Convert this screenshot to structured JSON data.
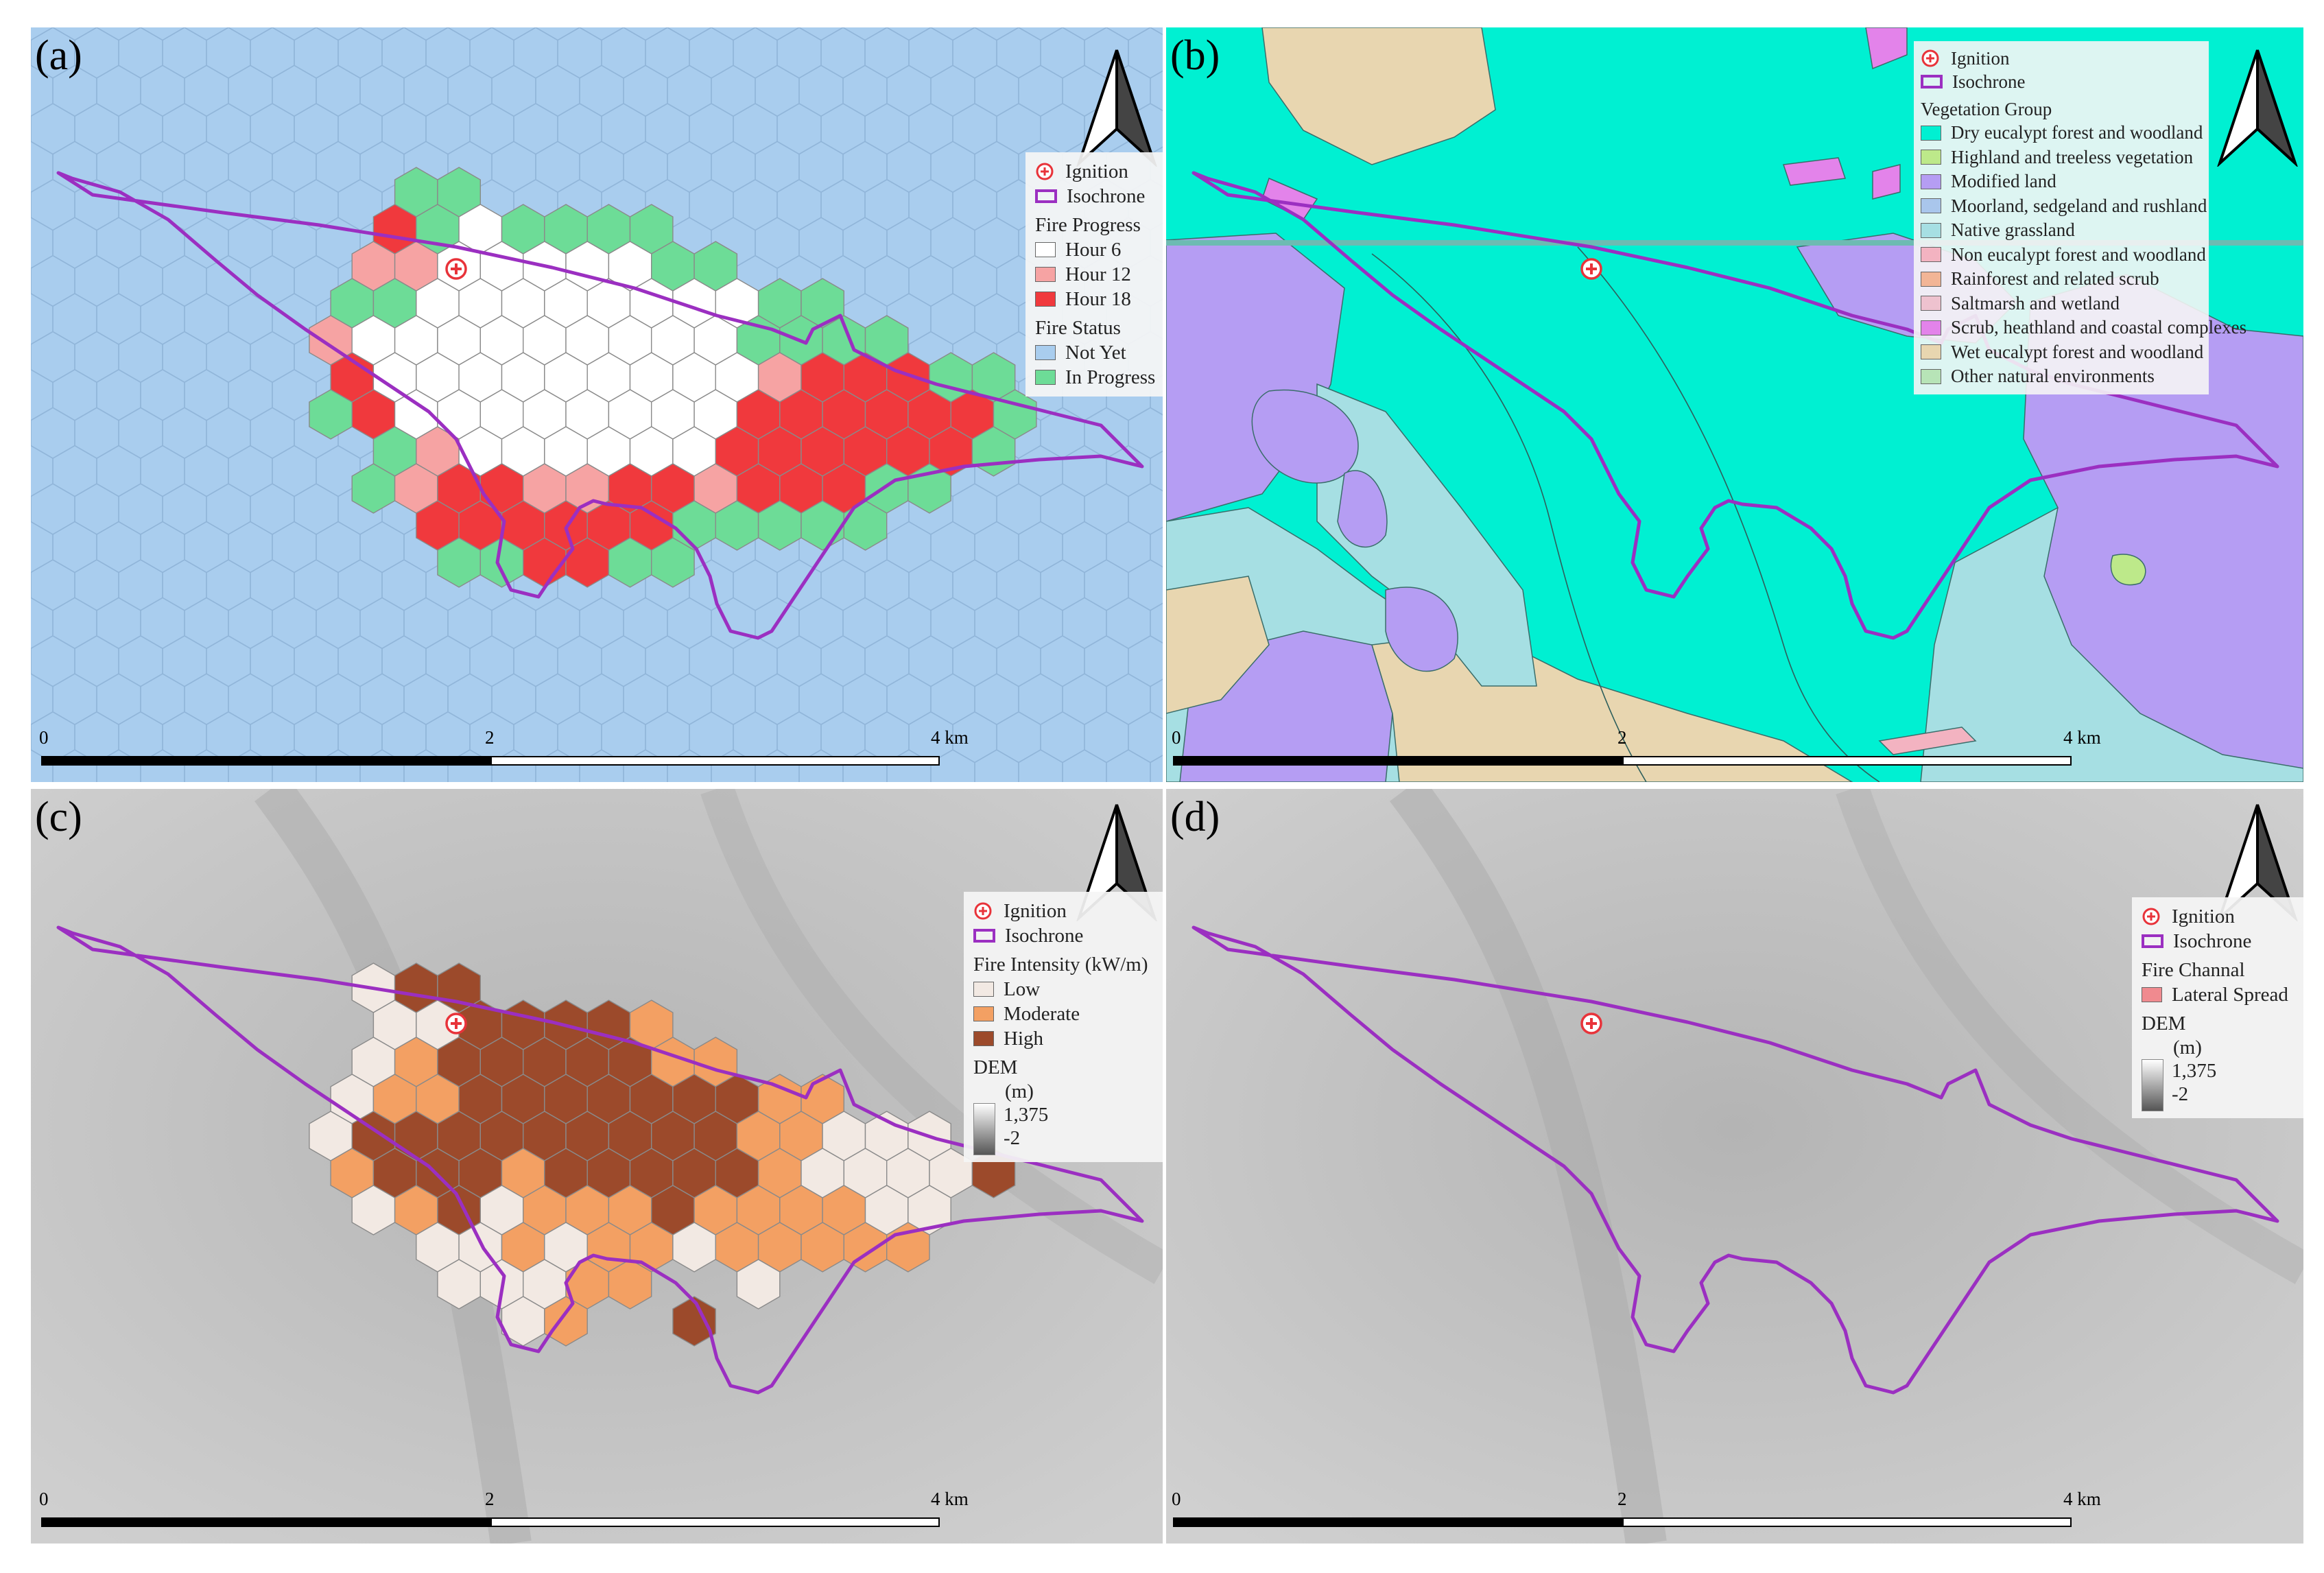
{
  "panels": {
    "a": {
      "label": "(a)",
      "legend": {
        "ignition": "Ignition",
        "isochrone": "Isochrone",
        "progress_title": "Fire Progress",
        "progress_items": [
          "Hour  6",
          "Hour 12",
          "Hour 18"
        ],
        "status_title": "Fire Status",
        "status_items": [
          "Not Yet",
          "In Progress"
        ]
      },
      "scale": {
        "t0": "0",
        "t1": "2",
        "t2": "4 km"
      }
    },
    "b": {
      "label": "(b)",
      "legend": {
        "ignition": "Ignition",
        "isochrone": "Isochrone",
        "veg_title": "Vegetation Group",
        "veg_items": [
          "Dry eucalypt forest and woodland",
          "Highland and treeless vegetation",
          "Modified land",
          "Moorland, sedgeland and rushland",
          "Native grassland",
          "Non eucalypt forest and woodland",
          "Rainforest and related scrub",
          "Saltmarsh and wetland",
          "Scrub, heathland and coastal complexes",
          "Wet eucalypt forest and woodland",
          "Other natural environments"
        ]
      },
      "scale": {
        "t0": "0",
        "t1": "2",
        "t2": "4 km"
      }
    },
    "c": {
      "label": "(c)",
      "legend": {
        "ignition": "Ignition",
        "isochrone": "Isochrone",
        "intensity_title": "Fire Intensity (kW/m)",
        "intensity_items": [
          "Low",
          "Moderate",
          "High"
        ],
        "dem_title": "DEM",
        "dem_unit": "(m)",
        "dem_max": "1,375",
        "dem_min": "-2"
      },
      "scale": {
        "t0": "0",
        "t1": "2",
        "t2": "4 km"
      }
    },
    "d": {
      "label": "(d)",
      "legend": {
        "ignition": "Ignition",
        "isochrone": "Isochrone",
        "channel_title": "Fire Channal",
        "channel_items": [
          "Lateral Spread"
        ],
        "dem_title": "DEM",
        "dem_unit": "(m)",
        "dem_max": "1,375",
        "dem_min": "-2"
      },
      "scale": {
        "t0": "0",
        "t1": "2",
        "t2": "4 km"
      }
    }
  },
  "colors": {
    "isochrone": "#9b2fc1",
    "ignition": "#e8333a",
    "not_yet": "#a9cdee",
    "in_progress": "#6ddc97",
    "hour6": "#ffffff",
    "hour12": "#f6a3a3",
    "hour18": "#f0393d",
    "intensity_low": "#f2e9e3",
    "intensity_moderate": "#f3a063",
    "intensity_high": "#9c4a2b",
    "lateral_spread": "#f08a8f",
    "veg": [
      "#00f0d2",
      "#bde98a",
      "#b59df3",
      "#a9c6ec",
      "#a6dfe3",
      "#f3b3c1",
      "#f2b596",
      "#eec2cf",
      "#e383ea",
      "#e8d6b0",
      "#b7e4b7"
    ]
  },
  "hex_maps": {
    "a": {
      "legend_order": [
        "hour6",
        "hour12",
        "hour18",
        "in_progress"
      ],
      "rows": [
        ".....GG.............",
        "....RGWGGGG.........",
        "....PPWWWWWGG.......",
        "...GGWWWWWWWWGG.....",
        "...PWWWWWWWWWGGGG...",
        "...RWWWWWWWWWPRRRGG.",
        "...GRWWWWWWWWRRRRRRG",
        "....GPWWWWWWRRRRRRG.",
        "....GPRRPPRRPRRRGG..",
        ".....RRRRRRGGGGG....",
        "......GGRRGG........"
      ]
    },
    "c": {
      "legend_order": [
        "intensity_low",
        "intensity_moderate",
        "intensity_high"
      ],
      "rows": [
        "....LHH.............",
        "....LLHHHHM.........",
        "....LMHHHHHMM.......",
        "...LMMHHHHHHHMM.....",
        "...LHHHHHHHHHMMLLL..",
        "...MHHHMHHHHHMLLLLH.",
        "....LMHLMMMHMMMMLL..",
        ".....LLMLMMLMMMMM...",
        "......LLLMM..L.....",
        ".......LM..H........"
      ]
    }
  }
}
